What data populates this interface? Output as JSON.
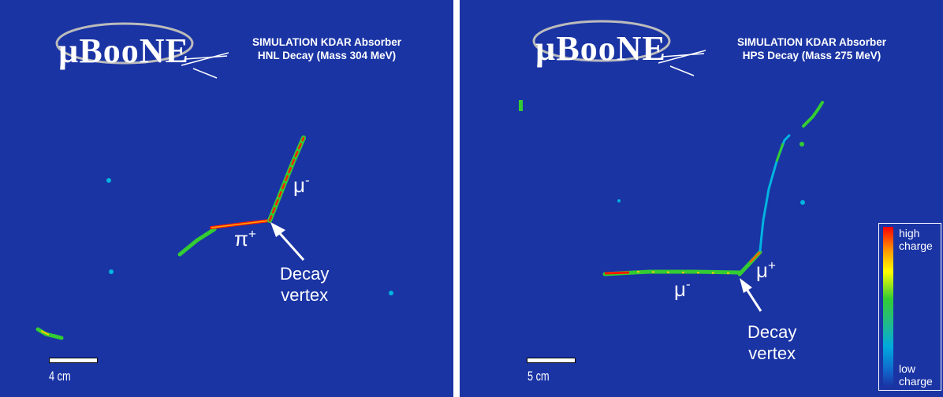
{
  "panels": {
    "left": {
      "logo": "µBooNE",
      "title_line1": "SIMULATION KDAR Absorber",
      "title_line2": "HNL Decay (Mass 304 MeV)",
      "particle_mu": "μ",
      "particle_mu_charge": "-",
      "particle_pi": "π",
      "particle_pi_charge": "+",
      "annotation_line1": "Decay",
      "annotation_line2": "vertex",
      "scale_label": "4 cm"
    },
    "right": {
      "logo": "µBooNE",
      "title_line1": "SIMULATION KDAR Absorber",
      "title_line2": "HPS Decay (Mass 275 MeV)",
      "particle_mu_minus": "μ",
      "particle_mu_minus_charge": "-",
      "particle_mu_plus": "μ",
      "particle_mu_plus_charge": "+",
      "annotation_line1": "Decay",
      "annotation_line2": "vertex",
      "scale_label": "5 cm",
      "colorbar": {
        "high_line1": "high",
        "high_line2": "charge",
        "low_line1": "low",
        "low_line2": "charge"
      }
    }
  },
  "colors": {
    "background": "#1a34a4",
    "track_low": "#00b4e0",
    "track_mid": "#33cc33",
    "track_high": "#ff1a00",
    "text": "#ffffff"
  }
}
